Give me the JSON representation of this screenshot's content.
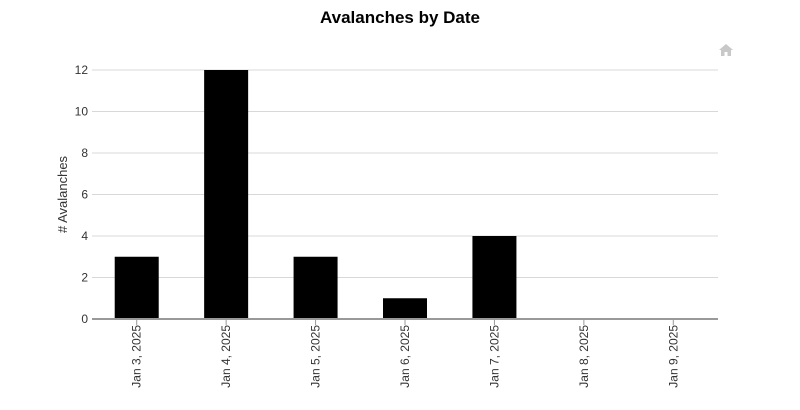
{
  "chart_data": {
    "type": "bar",
    "title": "Avalanches by Date",
    "xlabel": "",
    "ylabel": "# Avalanches",
    "categories": [
      "Jan 3, 2025",
      "Jan 4, 2025",
      "Jan 5, 2025",
      "Jan 6, 2025",
      "Jan 7, 2025",
      "Jan 8, 2025",
      "Jan 9, 2025"
    ],
    "values": [
      3,
      12,
      3,
      1,
      4,
      0,
      0
    ],
    "ylim": [
      0,
      12
    ],
    "yticks": [
      0,
      2,
      4,
      6,
      8,
      10,
      12
    ],
    "grid": true,
    "legend": "none",
    "bar_color": "#000000",
    "grid_color": "#d8d8d8",
    "axis_color": "#999999"
  },
  "toolbar": {
    "home_icon": "home-icon"
  }
}
